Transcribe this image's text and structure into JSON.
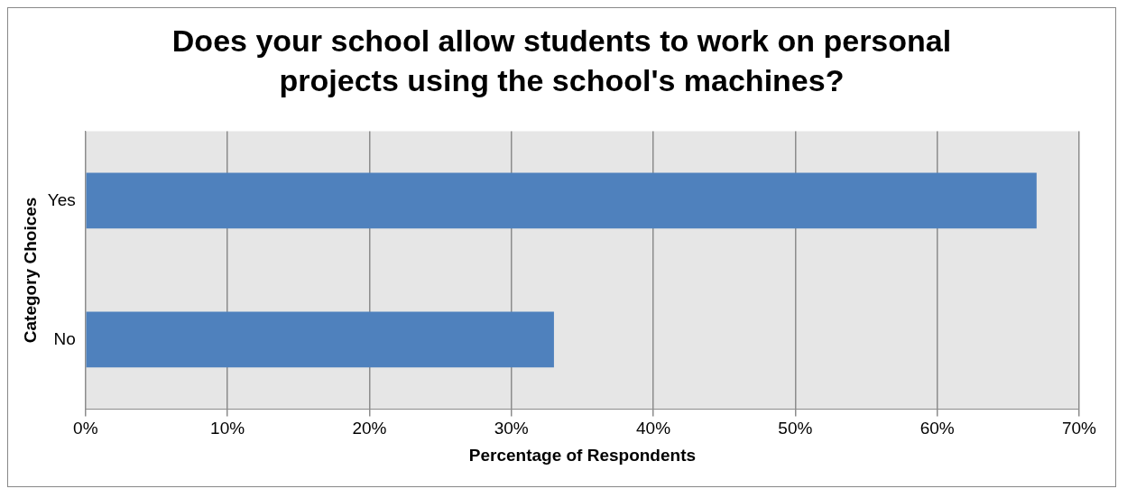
{
  "chart_data": {
    "type": "bar",
    "orientation": "horizontal",
    "title": "Does your school allow students to work on personal projects using the school's machines?",
    "xlabel": "Percentage of Respondents",
    "ylabel": "Category Choices",
    "categories": [
      "Yes",
      "No"
    ],
    "series": [
      {
        "color": "#4f81bd",
        "values": [
          67,
          33
        ]
      }
    ],
    "xlim": [
      0,
      70
    ],
    "xticks": [
      {
        "value": 0,
        "label": "0%"
      },
      {
        "value": 10,
        "label": "10%"
      },
      {
        "value": 20,
        "label": "20%"
      },
      {
        "value": 30,
        "label": "30%"
      },
      {
        "value": 40,
        "label": "40%"
      },
      {
        "value": 50,
        "label": "50%"
      },
      {
        "value": 60,
        "label": "60%"
      },
      {
        "value": 70,
        "label": "70%"
      }
    ],
    "grid": "x",
    "legend": false
  }
}
